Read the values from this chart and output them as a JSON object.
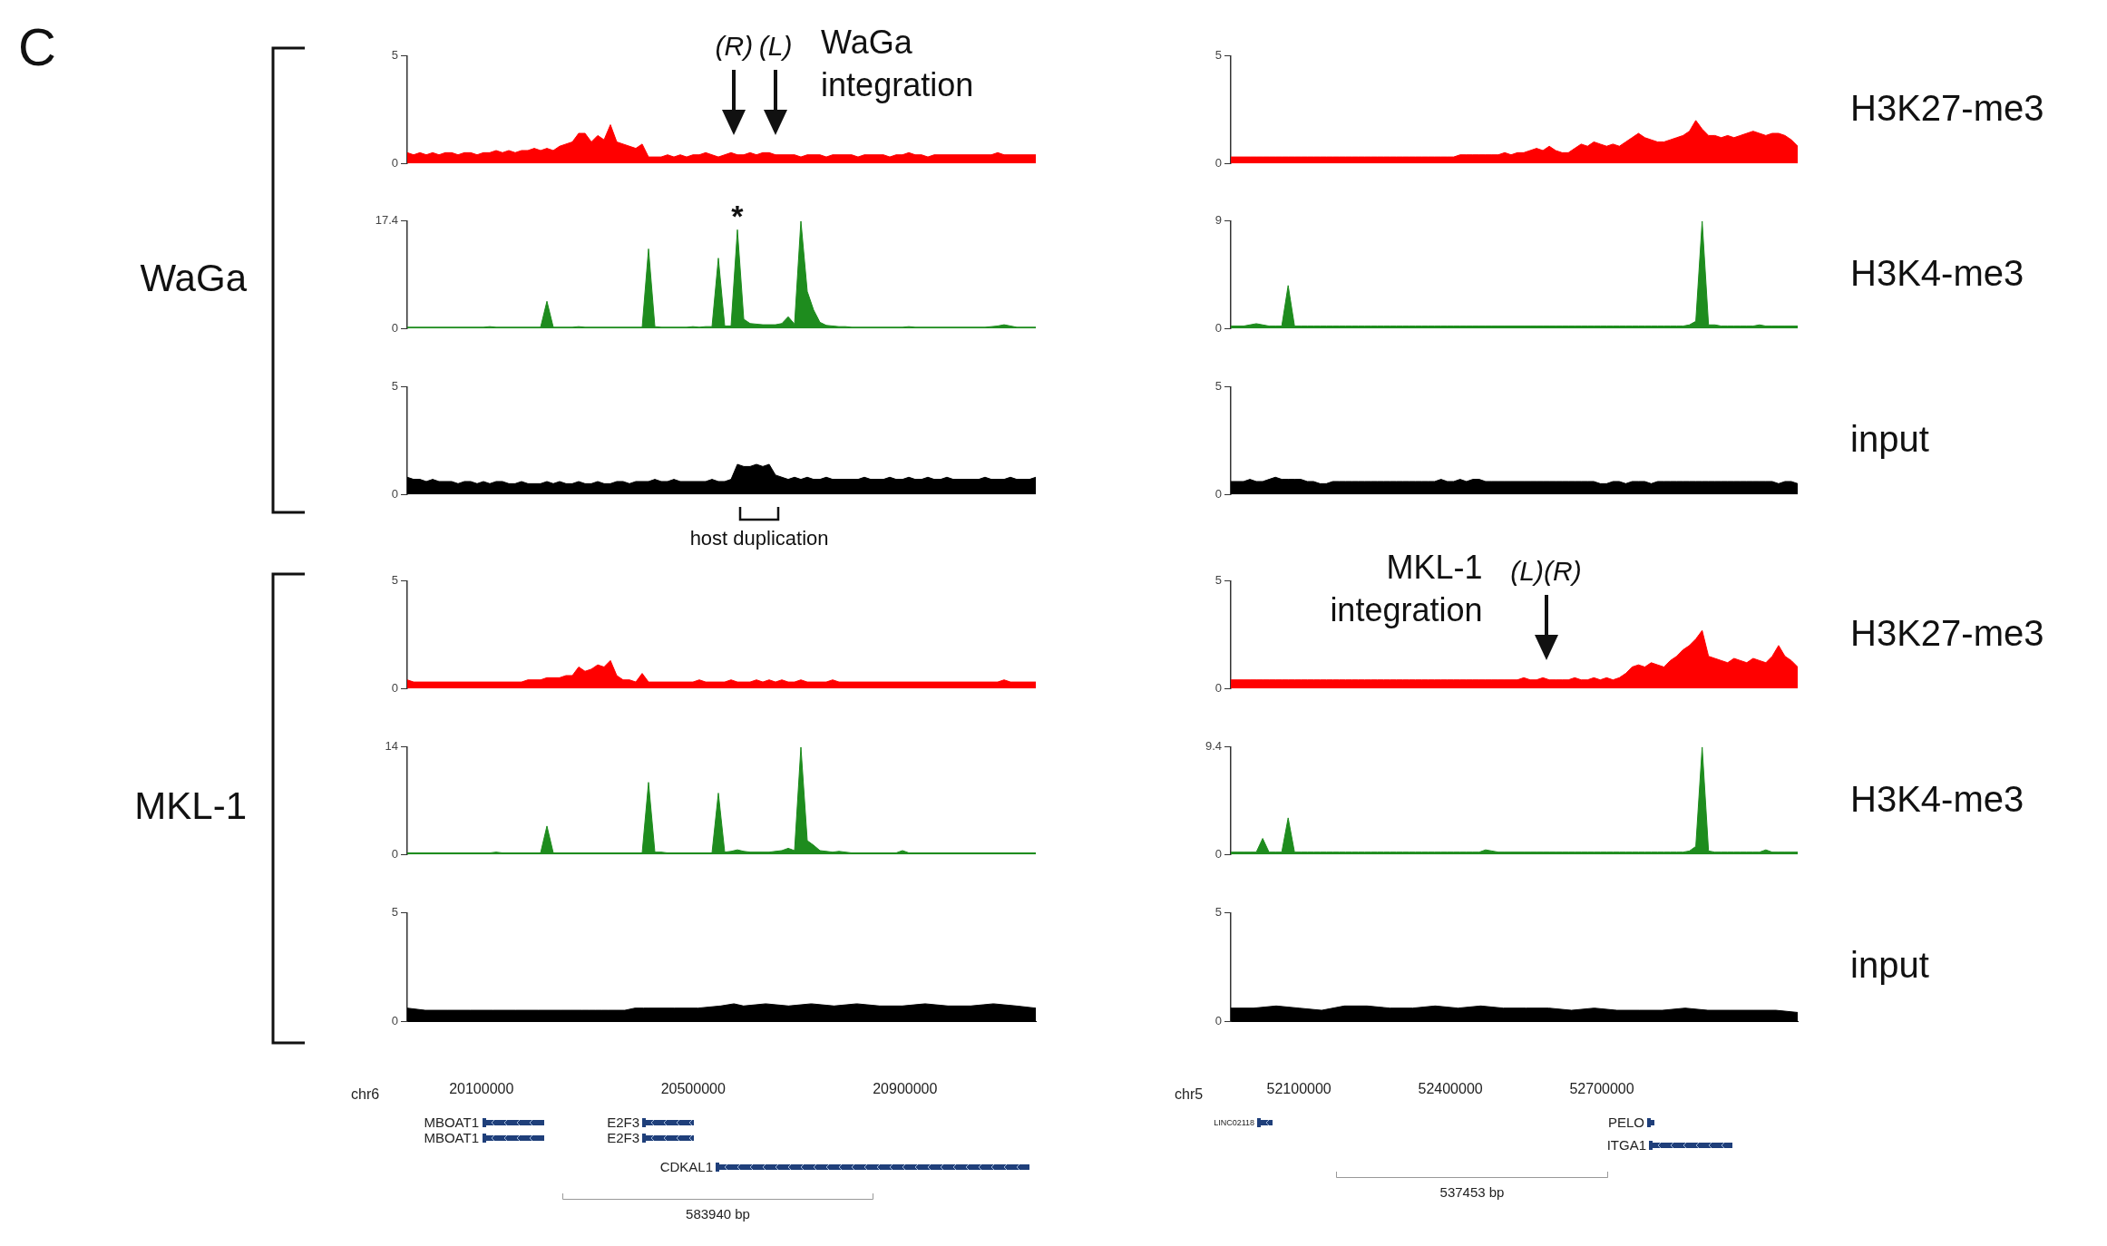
{
  "chart_data": [
    {
      "type": "other",
      "title": "C",
      "annotations": [
        "WaGa",
        "MKL-1",
        "H3K27-me3",
        "H3K4-me3",
        "input",
        "H3K27-me3",
        "H3K4-me3",
        "input"
      ]
    },
    {
      "type": "area",
      "color": "#ff0000",
      "ylim": [
        0,
        5
      ],
      "yticks": [
        0,
        5
      ],
      "tick_labels": "y",
      "categories": [
        null,
        null,
        null,
        null,
        null,
        null,
        null,
        null,
        null,
        null,
        null,
        null,
        null,
        null,
        null,
        null,
        null,
        null,
        null,
        null,
        null,
        null,
        null,
        null,
        null,
        null,
        null,
        null,
        null,
        null,
        null,
        null,
        null,
        null,
        null,
        null,
        null,
        null,
        null,
        null,
        null,
        null,
        null,
        null,
        null,
        null,
        null,
        null,
        null,
        null,
        null,
        null,
        null,
        null,
        null,
        null,
        null,
        null,
        null,
        null,
        null,
        null,
        null,
        null,
        null,
        null,
        null,
        null,
        null,
        null,
        null,
        null,
        null,
        null,
        null,
        null,
        null,
        null,
        null,
        null,
        null,
        null,
        null,
        null,
        null,
        null,
        null,
        null,
        null,
        null,
        null,
        null,
        null,
        null,
        null,
        null,
        null,
        null,
        null,
        null
      ],
      "values": [
        0.5,
        0.4,
        0.5,
        0.4,
        0.5,
        0.4,
        0.5,
        0.5,
        0.4,
        0.5,
        0.5,
        0.4,
        0.5,
        0.5,
        0.6,
        0.5,
        0.6,
        0.5,
        0.6,
        0.6,
        0.7,
        0.6,
        0.7,
        0.6,
        0.8,
        0.9,
        1.0,
        1.4,
        1.4,
        1.0,
        1.3,
        1.1,
        1.8,
        1.0,
        0.9,
        0.8,
        0.7,
        0.9,
        0.3,
        0.3,
        0.3,
        0.4,
        0.3,
        0.4,
        0.3,
        0.4,
        0.4,
        0.5,
        0.4,
        0.3,
        0.4,
        0.5,
        0.4,
        0.4,
        0.5,
        0.4,
        0.5,
        0.5,
        0.4,
        0.4,
        0.4,
        0.4,
        0.3,
        0.4,
        0.4,
        0.4,
        0.3,
        0.4,
        0.4,
        0.4,
        0.4,
        0.3,
        0.4,
        0.4,
        0.4,
        0.4,
        0.3,
        0.4,
        0.4,
        0.5,
        0.4,
        0.4,
        0.3,
        0.4,
        0.4,
        0.4,
        0.4,
        0.4,
        0.4,
        0.4,
        0.4,
        0.4,
        0.4,
        0.5,
        0.4,
        0.4,
        0.4,
        0.4,
        0.4,
        0.4
      ],
      "annotations": [
        "(R)",
        "(L)",
        "WaGa integration"
      ]
    },
    {
      "type": "area",
      "color": "#ff0000",
      "ylim": [
        0,
        5
      ],
      "yticks": [
        0,
        5
      ],
      "tick_labels": "y",
      "categories": [
        null,
        null,
        null,
        null,
        null,
        null,
        null,
        null,
        null,
        null,
        null,
        null,
        null,
        null,
        null,
        null,
        null,
        null,
        null,
        null,
        null,
        null,
        null,
        null,
        null,
        null,
        null,
        null,
        null,
        null,
        null,
        null,
        null,
        null,
        null,
        null,
        null,
        null,
        null,
        null,
        null,
        null,
        null,
        null,
        null,
        null,
        null,
        null,
        null,
        null,
        null,
        null,
        null,
        null,
        null,
        null,
        null,
        null,
        null,
        null,
        null,
        null,
        null,
        null,
        null,
        null,
        null,
        null,
        null,
        null,
        null,
        null,
        null,
        null,
        null,
        null,
        null,
        null,
        null,
        null,
        null,
        null,
        null,
        null,
        null,
        null,
        null,
        null,
        null,
        null
      ],
      "values": [
        0.3,
        0.3,
        0.3,
        0.3,
        0.3,
        0.3,
        0.3,
        0.3,
        0.3,
        0.3,
        0.3,
        0.3,
        0.3,
        0.3,
        0.3,
        0.3,
        0.3,
        0.3,
        0.3,
        0.3,
        0.3,
        0.3,
        0.3,
        0.3,
        0.3,
        0.3,
        0.3,
        0.3,
        0.3,
        0.3,
        0.3,
        0.3,
        0.3,
        0.3,
        0.3,
        0.3,
        0.4,
        0.4,
        0.4,
        0.4,
        0.4,
        0.4,
        0.4,
        0.5,
        0.4,
        0.5,
        0.5,
        0.6,
        0.7,
        0.6,
        0.8,
        0.6,
        0.5,
        0.5,
        0.7,
        0.9,
        0.8,
        1.0,
        0.9,
        0.8,
        0.9,
        0.8,
        1.0,
        1.2,
        1.4,
        1.2,
        1.1,
        1.0,
        1.0,
        1.1,
        1.2,
        1.3,
        1.5,
        2.0,
        1.6,
        1.3,
        1.3,
        1.2,
        1.3,
        1.2,
        1.3,
        1.4,
        1.5,
        1.4,
        1.3,
        1.4,
        1.4,
        1.3,
        1.1,
        0.8
      ]
    },
    {
      "type": "area",
      "color": "#1e8c1e",
      "ylim": [
        0,
        17.4
      ],
      "yticks": [
        0,
        17.4
      ],
      "tick_labels": "y",
      "categories": [
        null,
        null,
        null,
        null,
        null,
        null,
        null,
        null,
        null,
        null,
        null,
        null,
        null,
        null,
        null,
        null,
        null,
        null,
        null,
        null,
        null,
        null,
        null,
        null,
        null,
        null,
        null,
        null,
        null,
        null,
        null,
        null,
        null,
        null,
        null,
        null,
        null,
        null,
        null,
        null,
        null,
        null,
        null,
        null,
        null,
        null,
        null,
        null,
        null,
        null,
        null,
        null,
        null,
        null,
        null,
        null,
        null,
        null,
        null,
        null,
        null,
        null,
        null,
        null,
        null,
        null,
        null,
        null,
        null,
        null,
        null,
        null,
        null,
        null,
        null,
        null,
        null,
        null,
        null,
        null,
        null,
        null,
        null,
        null,
        null,
        null,
        null,
        null,
        null,
        null,
        null,
        null,
        null,
        null,
        null,
        null,
        null,
        null,
        null,
        null
      ],
      "values": [
        0.2,
        0.2,
        0.2,
        0.2,
        0.2,
        0.2,
        0.2,
        0.2,
        0.2,
        0.2,
        0.2,
        0.2,
        0.2,
        0.3,
        0.2,
        0.2,
        0.2,
        0.2,
        0.2,
        0.2,
        0.2,
        0.2,
        4.4,
        0.2,
        0.2,
        0.2,
        0.2,
        0.3,
        0.2,
        0.2,
        0.2,
        0.2,
        0.2,
        0.2,
        0.2,
        0.2,
        0.2,
        0.2,
        12.9,
        0.3,
        0.2,
        0.2,
        0.2,
        0.2,
        0.2,
        0.3,
        0.2,
        0.3,
        0.3,
        11.4,
        0.4,
        0.4,
        16.0,
        1.5,
        0.8,
        0.7,
        0.6,
        0.6,
        0.6,
        0.8,
        1.9,
        0.7,
        17.4,
        6.0,
        3.0,
        1.0,
        0.5,
        0.4,
        0.3,
        0.3,
        0.2,
        0.2,
        0.2,
        0.2,
        0.2,
        0.2,
        0.2,
        0.2,
        0.2,
        0.3,
        0.2,
        0.2,
        0.2,
        0.2,
        0.2,
        0.2,
        0.2,
        0.2,
        0.2,
        0.2,
        0.2,
        0.2,
        0.3,
        0.4,
        0.6,
        0.4,
        0.2,
        0.2,
        0.2,
        0.2
      ],
      "annotations": [
        "*"
      ]
    },
    {
      "type": "area",
      "color": "#1e8c1e",
      "ylim": [
        0,
        9
      ],
      "yticks": [
        0,
        9
      ],
      "tick_labels": "y",
      "categories": [
        null,
        null,
        null,
        null,
        null,
        null,
        null,
        null,
        null,
        null,
        null,
        null,
        null,
        null,
        null,
        null,
        null,
        null,
        null,
        null,
        null,
        null,
        null,
        null,
        null,
        null,
        null,
        null,
        null,
        null,
        null,
        null,
        null,
        null,
        null,
        null,
        null,
        null,
        null,
        null,
        null,
        null,
        null,
        null,
        null,
        null,
        null,
        null,
        null,
        null,
        null,
        null,
        null,
        null,
        null,
        null,
        null,
        null,
        null,
        null,
        null,
        null,
        null,
        null,
        null,
        null,
        null,
        null,
        null,
        null,
        null,
        null,
        null,
        null,
        null,
        null,
        null,
        null,
        null,
        null,
        null,
        null,
        null,
        null,
        null,
        null,
        null,
        null,
        null,
        null
      ],
      "values": [
        0.2,
        0.2,
        0.2,
        0.3,
        0.4,
        0.3,
        0.2,
        0.2,
        0.2,
        3.6,
        0.2,
        0.2,
        0.2,
        0.2,
        0.2,
        0.2,
        0.2,
        0.2,
        0.2,
        0.2,
        0.2,
        0.2,
        0.2,
        0.2,
        0.2,
        0.2,
        0.2,
        0.2,
        0.2,
        0.2,
        0.2,
        0.2,
        0.2,
        0.2,
        0.2,
        0.2,
        0.2,
        0.2,
        0.2,
        0.2,
        0.2,
        0.2,
        0.2,
        0.2,
        0.2,
        0.2,
        0.2,
        0.2,
        0.2,
        0.2,
        0.2,
        0.2,
        0.2,
        0.2,
        0.2,
        0.2,
        0.2,
        0.2,
        0.2,
        0.2,
        0.2,
        0.2,
        0.2,
        0.2,
        0.2,
        0.2,
        0.2,
        0.2,
        0.2,
        0.2,
        0.2,
        0.2,
        0.3,
        0.6,
        9.0,
        0.3,
        0.3,
        0.2,
        0.2,
        0.2,
        0.2,
        0.2,
        0.2,
        0.3,
        0.2,
        0.2,
        0.2,
        0.2,
        0.2,
        0.2
      ]
    },
    {
      "type": "area",
      "color": "#000000",
      "ylim": [
        0,
        5
      ],
      "yticks": [
        0,
        5
      ],
      "tick_labels": "y",
      "categories": [
        null,
        null,
        null,
        null,
        null,
        null,
        null,
        null,
        null,
        null,
        null,
        null,
        null,
        null,
        null,
        null,
        null,
        null,
        null,
        null,
        null,
        null,
        null,
        null,
        null,
        null,
        null,
        null,
        null,
        null,
        null,
        null,
        null,
        null,
        null,
        null,
        null,
        null,
        null,
        null,
        null,
        null,
        null,
        null,
        null,
        null,
        null,
        null,
        null,
        null,
        null,
        null,
        null,
        null,
        null,
        null,
        null,
        null,
        null,
        null,
        null,
        null,
        null,
        null,
        null,
        null,
        null,
        null,
        null,
        null,
        null,
        null,
        null,
        null,
        null,
        null,
        null,
        null,
        null,
        null,
        null,
        null,
        null,
        null,
        null,
        null,
        null,
        null,
        null,
        null,
        null,
        null,
        null,
        null,
        null,
        null,
        null,
        null,
        null,
        null
      ],
      "values": [
        0.8,
        0.7,
        0.7,
        0.6,
        0.7,
        0.6,
        0.6,
        0.6,
        0.5,
        0.6,
        0.6,
        0.5,
        0.6,
        0.5,
        0.6,
        0.6,
        0.5,
        0.5,
        0.6,
        0.5,
        0.5,
        0.5,
        0.6,
        0.5,
        0.6,
        0.5,
        0.5,
        0.6,
        0.5,
        0.5,
        0.6,
        0.5,
        0.5,
        0.6,
        0.6,
        0.5,
        0.6,
        0.6,
        0.6,
        0.7,
        0.6,
        0.6,
        0.7,
        0.6,
        0.6,
        0.6,
        0.6,
        0.6,
        0.7,
        0.6,
        0.6,
        0.7,
        1.4,
        1.3,
        1.3,
        1.4,
        1.3,
        1.4,
        0.9,
        0.8,
        0.7,
        0.8,
        0.7,
        0.8,
        0.7,
        0.7,
        0.8,
        0.7,
        0.7,
        0.7,
        0.7,
        0.7,
        0.8,
        0.7,
        0.7,
        0.7,
        0.8,
        0.7,
        0.7,
        0.8,
        0.7,
        0.7,
        0.8,
        0.7,
        0.7,
        0.8,
        0.7,
        0.7,
        0.7,
        0.7,
        0.7,
        0.8,
        0.7,
        0.7,
        0.7,
        0.8,
        0.7,
        0.7,
        0.7,
        0.8
      ],
      "annotations": [
        "host duplication"
      ]
    },
    {
      "type": "area",
      "color": "#000000",
      "ylim": [
        0,
        5
      ],
      "yticks": [
        0,
        5
      ],
      "tick_labels": "y",
      "categories": [
        null,
        null,
        null,
        null,
        null,
        null,
        null,
        null,
        null,
        null,
        null,
        null,
        null,
        null,
        null,
        null,
        null,
        null,
        null,
        null,
        null,
        null,
        null,
        null,
        null,
        null,
        null,
        null,
        null,
        null,
        null,
        null,
        null,
        null,
        null,
        null,
        null,
        null,
        null,
        null,
        null,
        null,
        null,
        null,
        null,
        null,
        null,
        null,
        null,
        null,
        null,
        null,
        null,
        null,
        null,
        null,
        null,
        null,
        null,
        null,
        null,
        null,
        null,
        null,
        null,
        null,
        null,
        null,
        null,
        null,
        null,
        null,
        null,
        null,
        null,
        null,
        null,
        null,
        null,
        null,
        null,
        null,
        null,
        null,
        null,
        null,
        null,
        null,
        null,
        null
      ],
      "values": [
        0.6,
        0.6,
        0.6,
        0.7,
        0.6,
        0.6,
        0.7,
        0.8,
        0.7,
        0.7,
        0.7,
        0.7,
        0.6,
        0.6,
        0.5,
        0.5,
        0.6,
        0.6,
        0.6,
        0.6,
        0.6,
        0.6,
        0.6,
        0.6,
        0.6,
        0.6,
        0.6,
        0.6,
        0.6,
        0.6,
        0.6,
        0.6,
        0.6,
        0.7,
        0.6,
        0.6,
        0.7,
        0.6,
        0.7,
        0.7,
        0.6,
        0.6,
        0.6,
        0.6,
        0.6,
        0.6,
        0.6,
        0.6,
        0.6,
        0.6,
        0.6,
        0.6,
        0.6,
        0.6,
        0.6,
        0.6,
        0.6,
        0.6,
        0.5,
        0.5,
        0.6,
        0.6,
        0.5,
        0.6,
        0.6,
        0.6,
        0.5,
        0.6,
        0.6,
        0.6,
        0.6,
        0.6,
        0.6,
        0.6,
        0.6,
        0.6,
        0.6,
        0.6,
        0.6,
        0.6,
        0.6,
        0.6,
        0.6,
        0.6,
        0.6,
        0.6,
        0.5,
        0.6,
        0.6,
        0.5
      ]
    },
    {
      "type": "area",
      "color": "#ff0000",
      "ylim": [
        0,
        5
      ],
      "yticks": [
        0,
        5
      ],
      "tick_labels": "y",
      "categories": [
        null,
        null,
        null,
        null,
        null,
        null,
        null,
        null,
        null,
        null,
        null,
        null,
        null,
        null,
        null,
        null,
        null,
        null,
        null,
        null,
        null,
        null,
        null,
        null,
        null,
        null,
        null,
        null,
        null,
        null,
        null,
        null,
        null,
        null,
        null,
        null,
        null,
        null,
        null,
        null,
        null,
        null,
        null,
        null,
        null,
        null,
        null,
        null,
        null,
        null,
        null,
        null,
        null,
        null,
        null,
        null,
        null,
        null,
        null,
        null,
        null,
        null,
        null,
        null,
        null,
        null,
        null,
        null,
        null,
        null,
        null,
        null,
        null,
        null,
        null,
        null,
        null,
        null,
        null,
        null,
        null,
        null,
        null,
        null,
        null,
        null,
        null,
        null,
        null,
        null,
        null,
        null,
        null,
        null,
        null,
        null,
        null,
        null,
        null,
        null
      ],
      "values": [
        0.4,
        0.3,
        0.3,
        0.3,
        0.3,
        0.3,
        0.3,
        0.3,
        0.3,
        0.3,
        0.3,
        0.3,
        0.3,
        0.3,
        0.3,
        0.3,
        0.3,
        0.3,
        0.3,
        0.4,
        0.4,
        0.4,
        0.5,
        0.5,
        0.5,
        0.6,
        0.6,
        1.0,
        0.8,
        0.9,
        1.1,
        1.0,
        1.3,
        0.6,
        0.4,
        0.4,
        0.3,
        0.7,
        0.3,
        0.3,
        0.3,
        0.3,
        0.3,
        0.3,
        0.3,
        0.3,
        0.4,
        0.3,
        0.3,
        0.3,
        0.3,
        0.4,
        0.3,
        0.3,
        0.3,
        0.4,
        0.3,
        0.4,
        0.3,
        0.4,
        0.3,
        0.3,
        0.4,
        0.3,
        0.3,
        0.3,
        0.3,
        0.4,
        0.3,
        0.3,
        0.3,
        0.3,
        0.3,
        0.3,
        0.3,
        0.3,
        0.3,
        0.3,
        0.3,
        0.3,
        0.3,
        0.3,
        0.3,
        0.3,
        0.3,
        0.3,
        0.3,
        0.3,
        0.3,
        0.3,
        0.3,
        0.3,
        0.3,
        0.3,
        0.4,
        0.3,
        0.3,
        0.3,
        0.3,
        0.3
      ]
    },
    {
      "type": "area",
      "color": "#ff0000",
      "ylim": [
        0,
        5
      ],
      "yticks": [
        0,
        5
      ],
      "tick_labels": "y",
      "categories": [
        null,
        null,
        null,
        null,
        null,
        null,
        null,
        null,
        null,
        null,
        null,
        null,
        null,
        null,
        null,
        null,
        null,
        null,
        null,
        null,
        null,
        null,
        null,
        null,
        null,
        null,
        null,
        null,
        null,
        null,
        null,
        null,
        null,
        null,
        null,
        null,
        null,
        null,
        null,
        null,
        null,
        null,
        null,
        null,
        null,
        null,
        null,
        null,
        null,
        null,
        null,
        null,
        null,
        null,
        null,
        null,
        null,
        null,
        null,
        null,
        null,
        null,
        null,
        null,
        null,
        null,
        null,
        null,
        null,
        null,
        null,
        null,
        null,
        null,
        null,
        null,
        null,
        null,
        null,
        null,
        null,
        null,
        null,
        null,
        null,
        null,
        null,
        null,
        null,
        null
      ],
      "values": [
        0.4,
        0.4,
        0.4,
        0.4,
        0.4,
        0.4,
        0.4,
        0.4,
        0.4,
        0.4,
        0.4,
        0.4,
        0.4,
        0.4,
        0.4,
        0.4,
        0.4,
        0.4,
        0.4,
        0.4,
        0.4,
        0.4,
        0.4,
        0.4,
        0.4,
        0.4,
        0.4,
        0.4,
        0.4,
        0.4,
        0.4,
        0.4,
        0.4,
        0.4,
        0.4,
        0.4,
        0.4,
        0.4,
        0.4,
        0.4,
        0.4,
        0.4,
        0.4,
        0.4,
        0.4,
        0.4,
        0.5,
        0.4,
        0.4,
        0.5,
        0.4,
        0.4,
        0.4,
        0.4,
        0.5,
        0.4,
        0.4,
        0.5,
        0.4,
        0.5,
        0.4,
        0.5,
        0.7,
        1.0,
        1.1,
        1.0,
        1.2,
        1.1,
        1.0,
        1.3,
        1.5,
        1.8,
        2.0,
        2.3,
        2.7,
        1.5,
        1.4,
        1.3,
        1.2,
        1.4,
        1.3,
        1.2,
        1.4,
        1.3,
        1.2,
        1.5,
        2.0,
        1.5,
        1.3,
        1.0
      ],
      "annotations": [
        "MKL-1 integration",
        "(L)(R)"
      ]
    },
    {
      "type": "area",
      "color": "#1e8c1e",
      "ylim": [
        0,
        14
      ],
      "yticks": [
        0,
        14
      ],
      "tick_labels": "y",
      "categories": [
        null,
        null,
        null,
        null,
        null,
        null,
        null,
        null,
        null,
        null,
        null,
        null,
        null,
        null,
        null,
        null,
        null,
        null,
        null,
        null,
        null,
        null,
        null,
        null,
        null,
        null,
        null,
        null,
        null,
        null,
        null,
        null,
        null,
        null,
        null,
        null,
        null,
        null,
        null,
        null,
        null,
        null,
        null,
        null,
        null,
        null,
        null,
        null,
        null,
        null,
        null,
        null,
        null,
        null,
        null,
        null,
        null,
        null,
        null,
        null,
        null,
        null,
        null,
        null,
        null,
        null,
        null,
        null,
        null,
        null,
        null,
        null,
        null,
        null,
        null,
        null,
        null,
        null,
        null,
        null,
        null,
        null,
        null,
        null,
        null,
        null,
        null,
        null,
        null,
        null,
        null,
        null,
        null,
        null,
        null,
        null,
        null,
        null,
        null,
        null
      ],
      "values": [
        0.2,
        0.2,
        0.2,
        0.2,
        0.2,
        0.2,
        0.2,
        0.2,
        0.2,
        0.2,
        0.2,
        0.2,
        0.2,
        0.2,
        0.3,
        0.2,
        0.2,
        0.2,
        0.2,
        0.2,
        0.2,
        0.2,
        3.7,
        0.2,
        0.2,
        0.2,
        0.2,
        0.2,
        0.2,
        0.2,
        0.2,
        0.2,
        0.2,
        0.2,
        0.2,
        0.2,
        0.2,
        0.2,
        9.4,
        0.3,
        0.3,
        0.2,
        0.2,
        0.2,
        0.2,
        0.2,
        0.2,
        0.2,
        0.2,
        8.0,
        0.3,
        0.4,
        0.6,
        0.4,
        0.3,
        0.3,
        0.3,
        0.3,
        0.4,
        0.5,
        0.8,
        0.5,
        14.0,
        1.8,
        1.2,
        0.5,
        0.4,
        0.3,
        0.4,
        0.3,
        0.2,
        0.2,
        0.2,
        0.2,
        0.2,
        0.2,
        0.2,
        0.2,
        0.5,
        0.2,
        0.2,
        0.2,
        0.2,
        0.2,
        0.2,
        0.2,
        0.2,
        0.2,
        0.2,
        0.2,
        0.2,
        0.2,
        0.2,
        0.2,
        0.2,
        0.2,
        0.2,
        0.2,
        0.2,
        0.2
      ]
    },
    {
      "type": "area",
      "color": "#1e8c1e",
      "ylim": [
        0,
        9.4
      ],
      "yticks": [
        0,
        9.4
      ],
      "tick_labels": "y",
      "categories": [
        null,
        null,
        null,
        null,
        null,
        null,
        null,
        null,
        null,
        null,
        null,
        null,
        null,
        null,
        null,
        null,
        null,
        null,
        null,
        null,
        null,
        null,
        null,
        null,
        null,
        null,
        null,
        null,
        null,
        null,
        null,
        null,
        null,
        null,
        null,
        null,
        null,
        null,
        null,
        null,
        null,
        null,
        null,
        null,
        null,
        null,
        null,
        null,
        null,
        null,
        null,
        null,
        null,
        null,
        null,
        null,
        null,
        null,
        null,
        null,
        null,
        null,
        null,
        null,
        null,
        null,
        null,
        null,
        null,
        null,
        null,
        null,
        null,
        null,
        null,
        null,
        null,
        null,
        null,
        null,
        null,
        null,
        null,
        null,
        null,
        null,
        null,
        null,
        null,
        null
      ],
      "values": [
        0.2,
        0.2,
        0.2,
        0.2,
        0.2,
        1.4,
        0.2,
        0.2,
        0.2,
        3.2,
        0.2,
        0.2,
        0.2,
        0.2,
        0.2,
        0.2,
        0.2,
        0.2,
        0.2,
        0.2,
        0.2,
        0.2,
        0.2,
        0.2,
        0.2,
        0.2,
        0.2,
        0.2,
        0.2,
        0.2,
        0.2,
        0.2,
        0.2,
        0.2,
        0.2,
        0.2,
        0.2,
        0.2,
        0.2,
        0.2,
        0.4,
        0.3,
        0.2,
        0.2,
        0.2,
        0.2,
        0.2,
        0.2,
        0.2,
        0.2,
        0.2,
        0.2,
        0.2,
        0.2,
        0.2,
        0.2,
        0.2,
        0.2,
        0.2,
        0.2,
        0.2,
        0.2,
        0.2,
        0.2,
        0.2,
        0.2,
        0.2,
        0.2,
        0.2,
        0.2,
        0.2,
        0.2,
        0.3,
        0.7,
        9.4,
        0.3,
        0.2,
        0.2,
        0.2,
        0.2,
        0.2,
        0.2,
        0.2,
        0.2,
        0.4,
        0.2,
        0.2,
        0.2,
        0.2,
        0.2
      ]
    },
    {
      "type": "area",
      "color": "#000000",
      "xlabel": "chr6",
      "xlim": [
        19960000,
        21147000
      ],
      "xticks": [
        20100000,
        20500000,
        20900000
      ],
      "ylim": [
        0,
        5
      ],
      "yticks": [
        0,
        5
      ],
      "x": [
        19960000,
        19994000,
        20037000,
        20079000,
        20122000,
        20165000,
        20208000,
        20251000,
        20270000,
        20290000,
        20303000,
        20316000,
        20328000,
        20340000,
        20354000,
        20371000,
        20390000,
        20406000,
        20414000,
        20465000,
        20509000,
        20552000,
        20577000,
        20595000,
        20637000,
        20680000,
        20723000,
        20766000,
        20809000,
        20852000,
        20895000,
        20938000,
        20981000,
        21024000,
        21067000,
        21110000,
        21147000
      ],
      "values": [
        0.6,
        0.5,
        0.5,
        0.5,
        0.5,
        0.5,
        0.5,
        0.5,
        0.5,
        0.5,
        0.5,
        0.5,
        0.5,
        0.5,
        0.5,
        0.5,
        0.6,
        0.6,
        0.6,
        0.6,
        0.6,
        0.7,
        0.8,
        0.7,
        0.8,
        0.7,
        0.8,
        0.7,
        0.8,
        0.7,
        0.7,
        0.8,
        0.7,
        0.7,
        0.8,
        0.7,
        0.6
      ]
    },
    {
      "type": "area",
      "color": "#000000",
      "xlabel": "chr5",
      "xlim": [
        51965000,
        53088000
      ],
      "xticks": [
        52100000,
        52400000,
        52700000
      ],
      "ylim": [
        0,
        5
      ],
      "yticks": [
        0,
        5
      ],
      "x": [
        51965000,
        52010000,
        52055000,
        52100000,
        52145000,
        52190000,
        52235000,
        52280000,
        52325000,
        52370000,
        52415000,
        52460000,
        52505000,
        52550000,
        52595000,
        52640000,
        52685000,
        52730000,
        52775000,
        52820000,
        52865000,
        52910000,
        52955000,
        53000000,
        53045000,
        53088000
      ],
      "values": [
        0.6,
        0.6,
        0.7,
        0.6,
        0.5,
        0.7,
        0.7,
        0.6,
        0.6,
        0.7,
        0.6,
        0.7,
        0.6,
        0.6,
        0.6,
        0.5,
        0.6,
        0.5,
        0.5,
        0.5,
        0.6,
        0.5,
        0.5,
        0.5,
        0.5,
        0.4
      ]
    },
    {
      "type": "other",
      "annotations": [
        "MBOAT1",
        "MBOAT1",
        "E2F3",
        "E2F3",
        "CDKAL1",
        "583940 bp",
        "LINC02118",
        "PELO",
        "ITGA1",
        "537453 bp"
      ]
    }
  ]
}
